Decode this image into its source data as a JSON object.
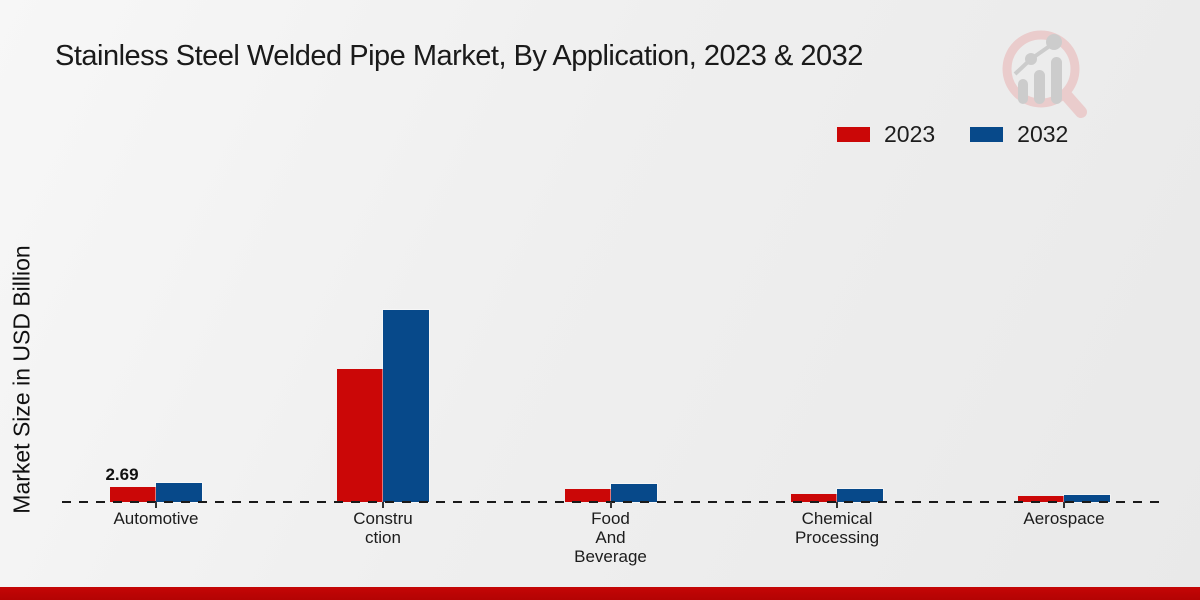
{
  "title": "Stainless Steel Welded Pipe Market, By Application, 2023 & 2032",
  "y_axis_label": "Market Size in USD Billion",
  "legend": {
    "items": [
      {
        "label": "2023",
        "color": "#cb0707"
      },
      {
        "label": "2032",
        "color": "#07498a"
      }
    ]
  },
  "chart_data": {
    "type": "bar",
    "title": "Stainless Steel Welded Pipe Market, By Application, 2023 & 2032",
    "ylabel": "Market Size in USD Billion",
    "categories": [
      "Automotive",
      "Construction",
      "Food And Beverage",
      "Chemical Processing",
      "Aerospace"
    ],
    "category_display": [
      "Automotive",
      "Constru\nction",
      "Food\nAnd\nBeverage",
      "Chemical\nProcessing",
      "Aerospace"
    ],
    "series": [
      {
        "name": "2023",
        "color": "#cb0707",
        "values": [
          2.69,
          24.3,
          2.4,
          1.5,
          1.05
        ]
      },
      {
        "name": "2032",
        "color": "#07498a",
        "values": [
          3.53,
          35.1,
          3.3,
          2.4,
          1.3
        ]
      }
    ],
    "bar_label": {
      "series_index": 0,
      "category_index": 0,
      "text": "2.69"
    },
    "ylim": [
      0,
      40
    ],
    "grid": false,
    "baseline_style": "dashed",
    "legend_position": "top-right"
  },
  "colors": {
    "accent_red": "#cb0707",
    "accent_blue": "#07498a",
    "footer_bar": "#bd0505",
    "watermark_pink": "#eac9c9",
    "watermark_gray": "#c9c9c9"
  }
}
